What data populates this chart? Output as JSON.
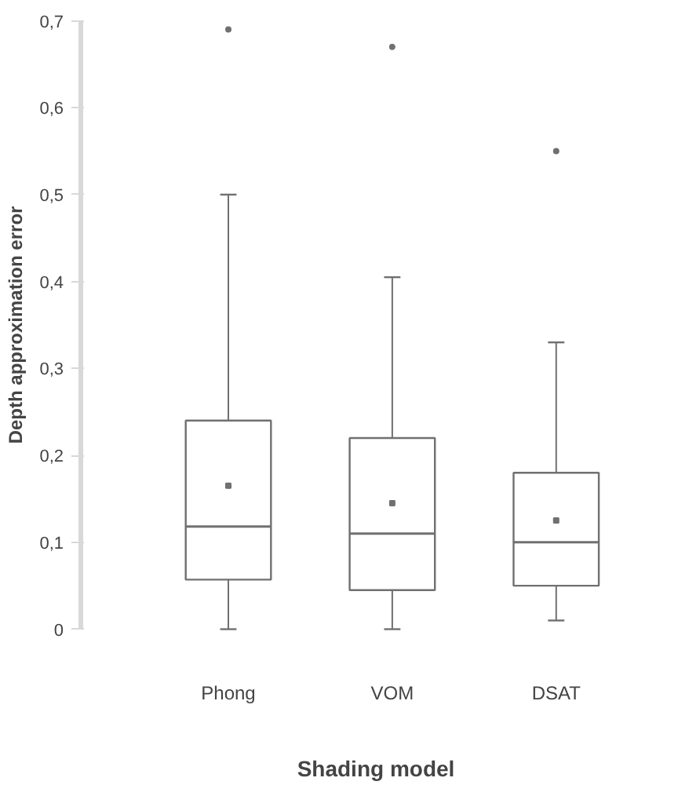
{
  "chart_data": {
    "type": "box",
    "xlabel": "Shading model",
    "ylabel": "Depth approximation error",
    "categories": [
      "Phong",
      "VOM",
      "DSAT"
    ],
    "color": "#707070",
    "boxes": [
      {
        "low": 0,
        "q1": 0.057,
        "median": 0.118,
        "q3": 0.24,
        "high": 0.5,
        "mean": 0.165,
        "outliers": [
          0.69
        ]
      },
      {
        "low": 0,
        "q1": 0.045,
        "median": 0.11,
        "q3": 0.22,
        "high": 0.405,
        "mean": 0.145,
        "outliers": [
          0.67
        ]
      },
      {
        "low": 0.01,
        "q1": 0.05,
        "median": 0.1,
        "q3": 0.18,
        "high": 0.33,
        "mean": 0.125,
        "outliers": [
          0.55
        ]
      }
    ],
    "ylim": [
      0,
      0.7
    ],
    "yticks": [
      {
        "value": 0,
        "label": "0"
      },
      {
        "value": 0.1,
        "label": "0,1"
      },
      {
        "value": 0.2,
        "label": "0,2"
      },
      {
        "value": 0.3,
        "label": "0,3"
      },
      {
        "value": 0.4,
        "label": "0,4"
      },
      {
        "value": 0.5,
        "label": "0,5"
      },
      {
        "value": 0.6,
        "label": "0,6"
      },
      {
        "value": 0.7,
        "label": "0,7"
      }
    ],
    "grid": false
  }
}
